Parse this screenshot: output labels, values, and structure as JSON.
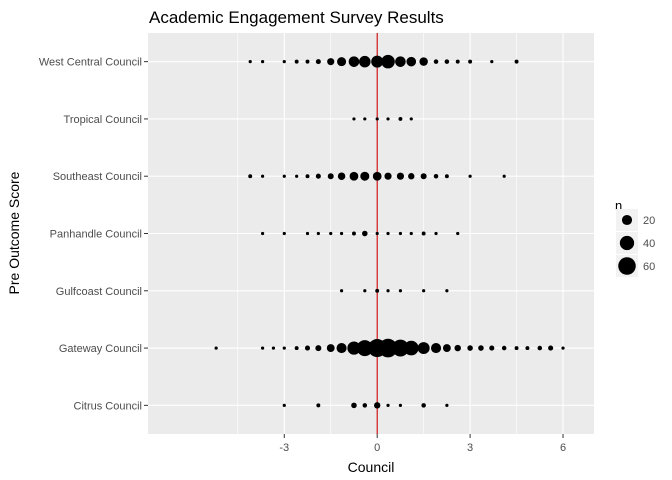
{
  "chart_data": {
    "type": "scatter",
    "title": "Academic Engagement Survey Results",
    "xlabel": "Council",
    "ylabel": "Pre Outcome Score",
    "xlim": [
      -7.4,
      7.0
    ],
    "x_ticks": [
      -3,
      0,
      3,
      6
    ],
    "x_tick_labels": [
      "-3",
      "0",
      "3",
      "6"
    ],
    "categories": [
      "Citrus Council",
      "Gateway Council",
      "Gulfcoast Council",
      "Panhandle Council",
      "Southeast Council",
      "Tropical Council",
      "West Central Council"
    ],
    "reference_line": {
      "x": 0,
      "color": "#cc0000"
    },
    "grid": true,
    "point_color": "#000000",
    "panel_background": "#ebebeb",
    "grid_color": "#ffffff",
    "size_aesthetic": "n",
    "size_range": [
      1,
      72
    ],
    "legend": {
      "title": "n",
      "position": "right",
      "entries": [
        20,
        40,
        60
      ]
    },
    "points": [
      {
        "y": "West Central Council",
        "x": -4.1,
        "n": 1
      },
      {
        "y": "West Central Council",
        "x": -3.7,
        "n": 1
      },
      {
        "y": "West Central Council",
        "x": -3.0,
        "n": 1
      },
      {
        "y": "West Central Council",
        "x": -2.6,
        "n": 3
      },
      {
        "y": "West Central Council",
        "x": -2.25,
        "n": 3
      },
      {
        "y": "West Central Council",
        "x": -1.9,
        "n": 5
      },
      {
        "y": "West Central Council",
        "x": -1.5,
        "n": 10
      },
      {
        "y": "West Central Council",
        "x": -1.15,
        "n": 16
      },
      {
        "y": "West Central Council",
        "x": -0.75,
        "n": 22
      },
      {
        "y": "West Central Council",
        "x": -0.4,
        "n": 26
      },
      {
        "y": "West Central Council",
        "x": 0,
        "n": 28
      },
      {
        "y": "West Central Council",
        "x": 0.35,
        "n": 36
      },
      {
        "y": "West Central Council",
        "x": 0.75,
        "n": 22
      },
      {
        "y": "West Central Council",
        "x": 1.1,
        "n": 18
      },
      {
        "y": "West Central Council",
        "x": 1.5,
        "n": 14
      },
      {
        "y": "West Central Council",
        "x": 1.9,
        "n": 4
      },
      {
        "y": "West Central Council",
        "x": 2.25,
        "n": 4
      },
      {
        "y": "West Central Council",
        "x": 2.6,
        "n": 3
      },
      {
        "y": "West Central Council",
        "x": 3.0,
        "n": 3
      },
      {
        "y": "West Central Council",
        "x": 3.7,
        "n": 1
      },
      {
        "y": "West Central Council",
        "x": 4.5,
        "n": 3
      },
      {
        "y": "Tropical Council",
        "x": -0.75,
        "n": 1
      },
      {
        "y": "Tropical Council",
        "x": -0.4,
        "n": 1
      },
      {
        "y": "Tropical Council",
        "x": 0,
        "n": 1
      },
      {
        "y": "Tropical Council",
        "x": 0.35,
        "n": 1
      },
      {
        "y": "Tropical Council",
        "x": 0.75,
        "n": 3
      },
      {
        "y": "Tropical Council",
        "x": 1.1,
        "n": 1
      },
      {
        "y": "Southeast Council",
        "x": -4.1,
        "n": 3
      },
      {
        "y": "Southeast Council",
        "x": -3.7,
        "n": 1
      },
      {
        "y": "Southeast Council",
        "x": -3.0,
        "n": 1
      },
      {
        "y": "Southeast Council",
        "x": -2.6,
        "n": 2
      },
      {
        "y": "Southeast Council",
        "x": -2.25,
        "n": 3
      },
      {
        "y": "Southeast Council",
        "x": -1.9,
        "n": 5
      },
      {
        "y": "Southeast Council",
        "x": -1.5,
        "n": 7
      },
      {
        "y": "Southeast Council",
        "x": -1.15,
        "n": 11
      },
      {
        "y": "Southeast Council",
        "x": -0.75,
        "n": 15
      },
      {
        "y": "Southeast Council",
        "x": -0.4,
        "n": 16
      },
      {
        "y": "Southeast Council",
        "x": 0,
        "n": 15
      },
      {
        "y": "Southeast Council",
        "x": 0.35,
        "n": 10
      },
      {
        "y": "Southeast Council",
        "x": 0.75,
        "n": 10
      },
      {
        "y": "Southeast Council",
        "x": 1.1,
        "n": 8
      },
      {
        "y": "Southeast Council",
        "x": 1.5,
        "n": 7
      },
      {
        "y": "Southeast Council",
        "x": 1.9,
        "n": 4
      },
      {
        "y": "Southeast Council",
        "x": 2.25,
        "n": 3
      },
      {
        "y": "Southeast Council",
        "x": 3.0,
        "n": 1
      },
      {
        "y": "Southeast Council",
        "x": 4.1,
        "n": 1
      },
      {
        "y": "Panhandle Council",
        "x": -3.7,
        "n": 1
      },
      {
        "y": "Panhandle Council",
        "x": -3.0,
        "n": 1
      },
      {
        "y": "Panhandle Council",
        "x": -2.25,
        "n": 2
      },
      {
        "y": "Panhandle Council",
        "x": -1.9,
        "n": 2
      },
      {
        "y": "Panhandle Council",
        "x": -1.5,
        "n": 1
      },
      {
        "y": "Panhandle Council",
        "x": -1.15,
        "n": 2
      },
      {
        "y": "Panhandle Council",
        "x": -0.75,
        "n": 3
      },
      {
        "y": "Panhandle Council",
        "x": -0.4,
        "n": 6
      },
      {
        "y": "Panhandle Council",
        "x": 0,
        "n": 1
      },
      {
        "y": "Panhandle Council",
        "x": 0.35,
        "n": 2
      },
      {
        "y": "Panhandle Council",
        "x": 0.75,
        "n": 2
      },
      {
        "y": "Panhandle Council",
        "x": 1.1,
        "n": 2
      },
      {
        "y": "Panhandle Council",
        "x": 1.5,
        "n": 3
      },
      {
        "y": "Panhandle Council",
        "x": 1.9,
        "n": 1
      },
      {
        "y": "Panhandle Council",
        "x": 2.6,
        "n": 1
      },
      {
        "y": "Gulfcoast Council",
        "x": -1.15,
        "n": 1
      },
      {
        "y": "Gulfcoast Council",
        "x": -0.4,
        "n": 1
      },
      {
        "y": "Gulfcoast Council",
        "x": 0,
        "n": 3
      },
      {
        "y": "Gulfcoast Council",
        "x": 0.35,
        "n": 1
      },
      {
        "y": "Gulfcoast Council",
        "x": 0.75,
        "n": 1
      },
      {
        "y": "Gulfcoast Council",
        "x": 1.5,
        "n": 1
      },
      {
        "y": "Gulfcoast Council",
        "x": 2.25,
        "n": 1
      },
      {
        "y": "Gateway Council",
        "x": -5.2,
        "n": 1
      },
      {
        "y": "Gateway Council",
        "x": -3.7,
        "n": 1
      },
      {
        "y": "Gateway Council",
        "x": -3.35,
        "n": 2
      },
      {
        "y": "Gateway Council",
        "x": -3.0,
        "n": 2
      },
      {
        "y": "Gateway Council",
        "x": -2.6,
        "n": 3
      },
      {
        "y": "Gateway Council",
        "x": -2.25,
        "n": 5
      },
      {
        "y": "Gateway Council",
        "x": -1.9,
        "n": 7
      },
      {
        "y": "Gateway Council",
        "x": -1.5,
        "n": 12
      },
      {
        "y": "Gateway Council",
        "x": -1.15,
        "n": 20
      },
      {
        "y": "Gateway Council",
        "x": -0.75,
        "n": 34
      },
      {
        "y": "Gateway Council",
        "x": -0.4,
        "n": 50
      },
      {
        "y": "Gateway Council",
        "x": 0,
        "n": 64
      },
      {
        "y": "Gateway Council",
        "x": 0.35,
        "n": 68
      },
      {
        "y": "Gateway Council",
        "x": 0.75,
        "n": 56
      },
      {
        "y": "Gateway Council",
        "x": 1.1,
        "n": 42
      },
      {
        "y": "Gateway Council",
        "x": 1.5,
        "n": 28
      },
      {
        "y": "Gateway Council",
        "x": 1.9,
        "n": 20
      },
      {
        "y": "Gateway Council",
        "x": 2.25,
        "n": 12
      },
      {
        "y": "Gateway Council",
        "x": 2.6,
        "n": 8
      },
      {
        "y": "Gateway Council",
        "x": 3.0,
        "n": 6
      },
      {
        "y": "Gateway Council",
        "x": 3.35,
        "n": 6
      },
      {
        "y": "Gateway Council",
        "x": 3.7,
        "n": 5
      },
      {
        "y": "Gateway Council",
        "x": 4.1,
        "n": 4
      },
      {
        "y": "Gateway Council",
        "x": 4.5,
        "n": 3
      },
      {
        "y": "Gateway Council",
        "x": 4.85,
        "n": 3
      },
      {
        "y": "Gateway Council",
        "x": 5.25,
        "n": 4
      },
      {
        "y": "Gateway Council",
        "x": 5.6,
        "n": 5
      },
      {
        "y": "Gateway Council",
        "x": 6.0,
        "n": 1
      },
      {
        "y": "Citrus Council",
        "x": -3.0,
        "n": 1
      },
      {
        "y": "Citrus Council",
        "x": -1.9,
        "n": 3
      },
      {
        "y": "Citrus Council",
        "x": -0.75,
        "n": 6
      },
      {
        "y": "Citrus Council",
        "x": -0.4,
        "n": 4
      },
      {
        "y": "Citrus Council",
        "x": 0,
        "n": 8
      },
      {
        "y": "Citrus Council",
        "x": 0.35,
        "n": 1
      },
      {
        "y": "Citrus Council",
        "x": 0.75,
        "n": 1
      },
      {
        "y": "Citrus Council",
        "x": 1.5,
        "n": 4
      },
      {
        "y": "Citrus Council",
        "x": 2.25,
        "n": 1
      }
    ]
  }
}
